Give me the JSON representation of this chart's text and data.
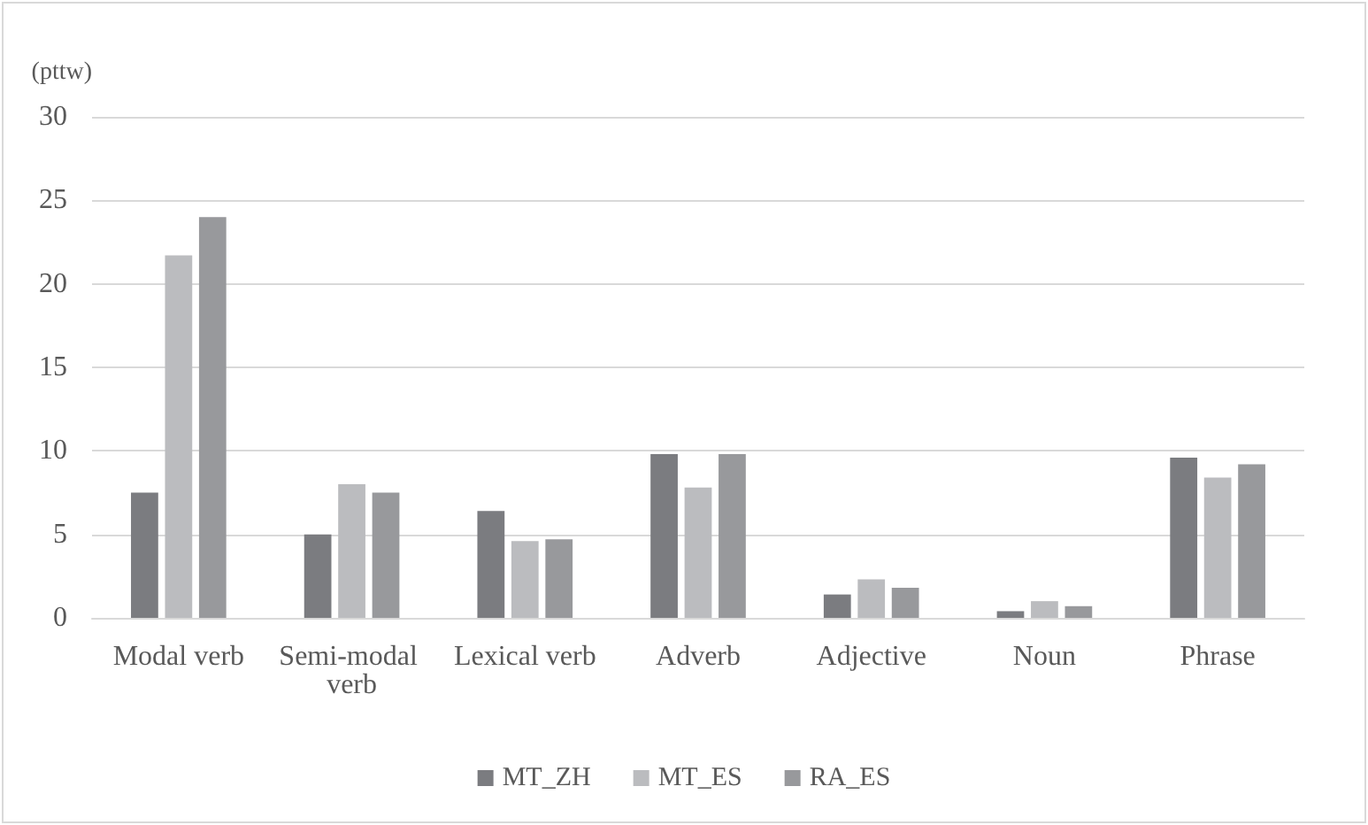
{
  "chart_data": {
    "type": "bar",
    "ylabel": "(pttw)",
    "categories": [
      "Modal verb",
      "Semi-modal verb",
      "Lexical verb",
      "Adverb",
      "Adjective",
      "Noun",
      "Phrase"
    ],
    "series": [
      {
        "name": "MT_ZH",
        "color": "#7b7c80",
        "values": [
          7.5,
          5.0,
          6.4,
          9.8,
          1.4,
          0.4,
          9.6
        ]
      },
      {
        "name": "MT_ES",
        "color": "#bbbcbf",
        "values": [
          21.7,
          8.0,
          4.6,
          7.8,
          2.3,
          1.0,
          8.4
        ]
      },
      {
        "name": "RA_ES",
        "color": "#98999c",
        "values": [
          24.0,
          7.5,
          4.7,
          9.8,
          1.8,
          0.7,
          9.2
        ]
      }
    ],
    "ylim": [
      0,
      30
    ],
    "yticks": [
      0,
      5,
      10,
      15,
      20,
      25,
      30
    ],
    "grid": "y",
    "legend": "bottom"
  }
}
